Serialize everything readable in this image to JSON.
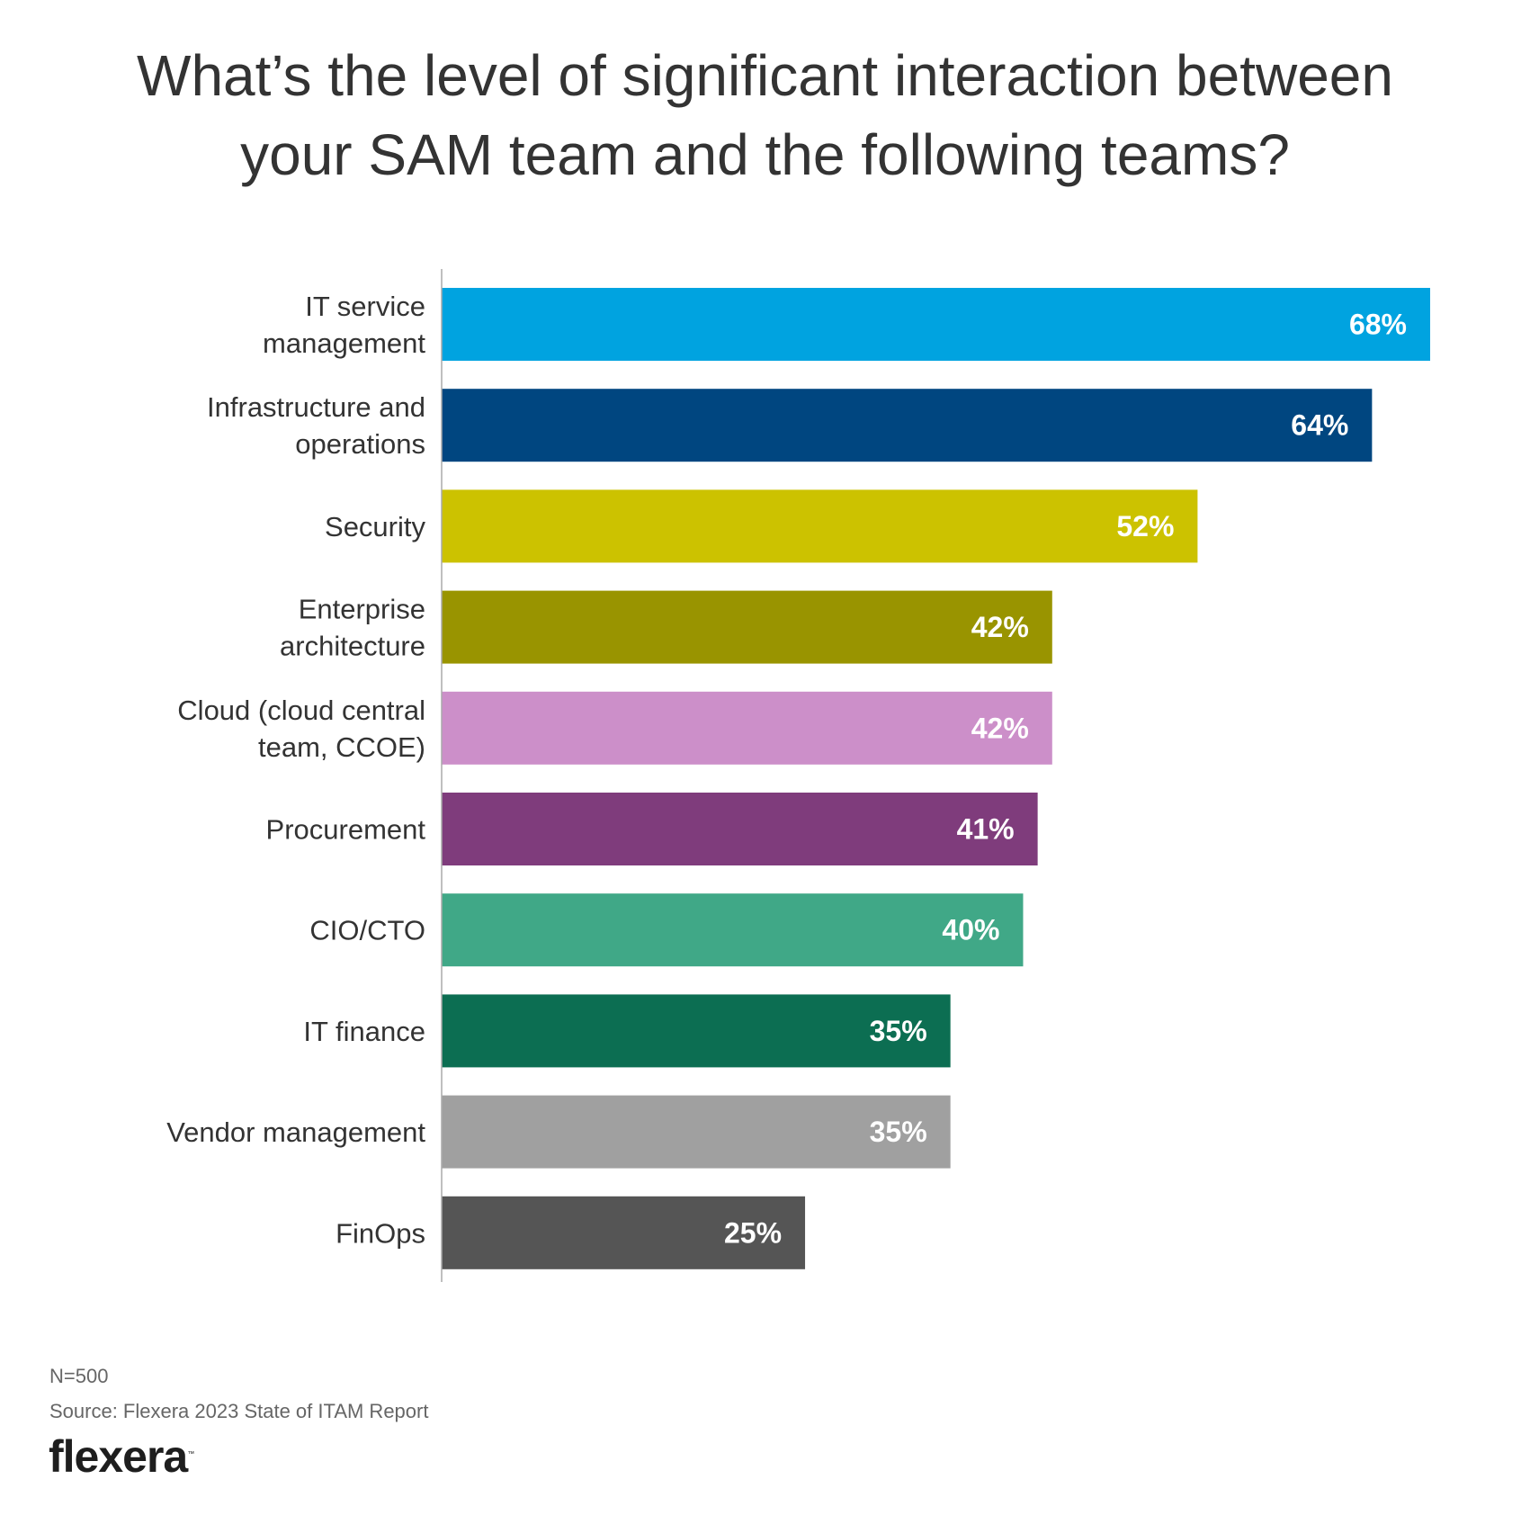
{
  "chart_data": {
    "type": "bar",
    "orientation": "horizontal",
    "title": "What’s the level of significant interaction between your SAM team and the following teams?",
    "title_lines": [
      "What’s the level of significant interaction between",
      "your SAM team and the following teams?"
    ],
    "categories": [
      [
        "IT service",
        "management"
      ],
      [
        "Infrastructure and",
        "operations"
      ],
      [
        "Security"
      ],
      [
        "Enterprise",
        "architecture"
      ],
      [
        "Cloud (cloud central",
        "team, CCOE)"
      ],
      [
        "Procurement"
      ],
      [
        "CIO/CTO"
      ],
      [
        "IT finance"
      ],
      [
        "Vendor management"
      ],
      [
        "FinOps"
      ]
    ],
    "values": [
      68,
      64,
      52,
      42,
      42,
      41,
      40,
      35,
      35,
      25
    ],
    "value_labels": [
      "68%",
      "64%",
      "52%",
      "42%",
      "42%",
      "41%",
      "40%",
      "35%",
      "35%",
      "25%"
    ],
    "colors": [
      "#00A3E0",
      "#004680",
      "#CCC200",
      "#999400",
      "#CC8FC9",
      "#7F3C7C",
      "#40A887",
      "#0C6E52",
      "#A0A0A0",
      "#555555"
    ],
    "xlim": [
      0,
      68
    ],
    "grid": false,
    "xlabel": "",
    "ylabel": ""
  },
  "footer": {
    "n": "N=500",
    "source": "Source: Flexera 2023 State of ITAM Report",
    "logo": "flexera",
    "logo_tm": "™"
  }
}
